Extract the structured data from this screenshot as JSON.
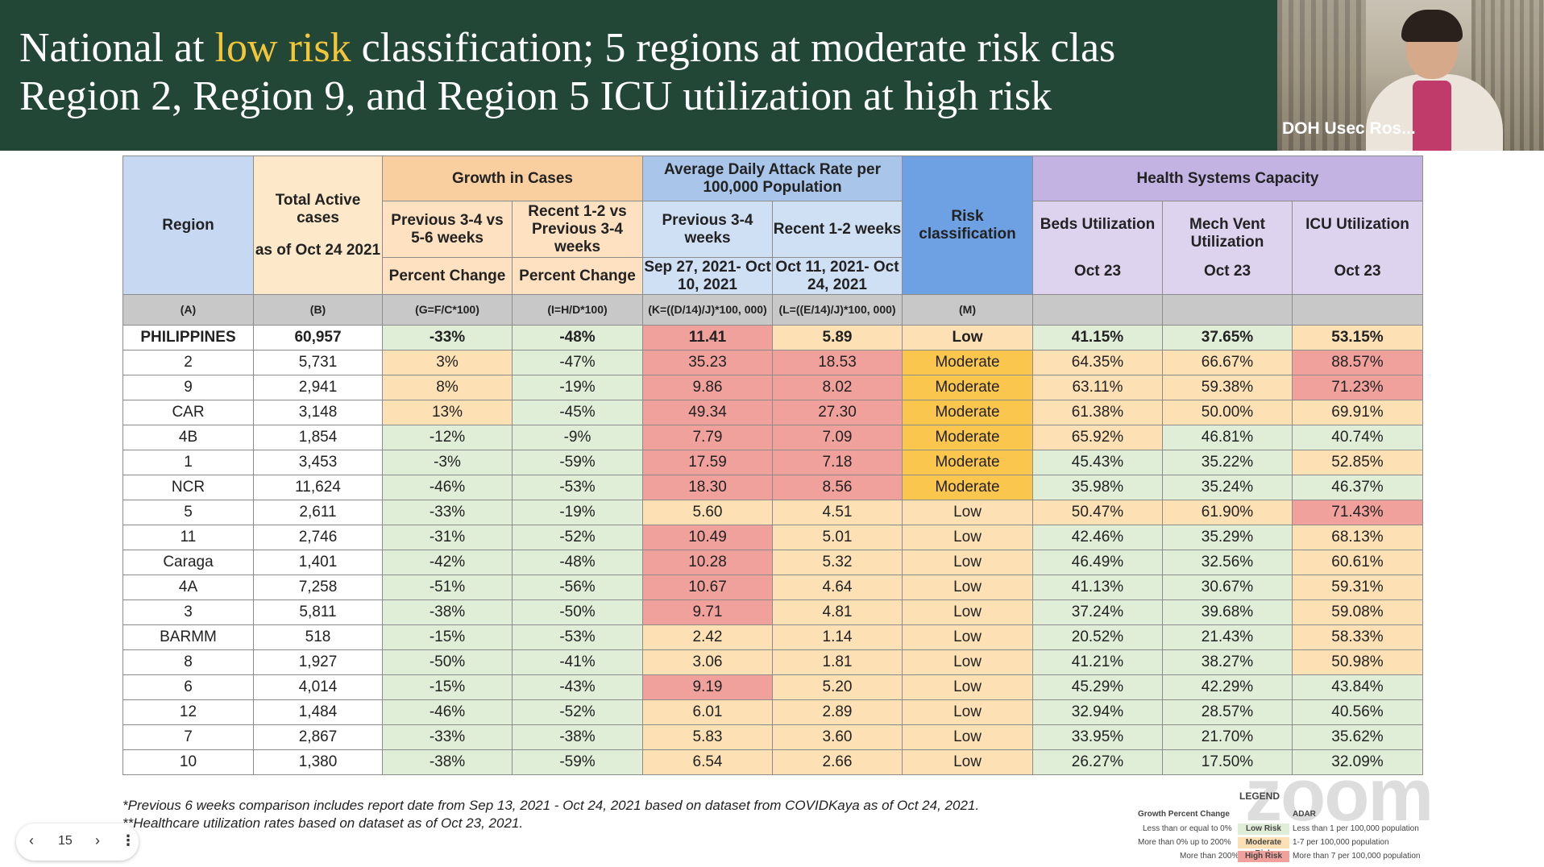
{
  "banner": {
    "title_pre": "National at ",
    "title_highlight": "low risk",
    "title_post": " classification; 5 regions at moderate risk clas",
    "title_line2": "Region 2, Region 9, and Region 5 ICU utilization at high risk"
  },
  "video": {
    "participant_label": "DOH Usec Ros..."
  },
  "table": {
    "headers": {
      "region": "Region",
      "total_active_1": "Total Active cases",
      "total_active_2": "as of Oct 24 2021",
      "growth": "Growth in Cases",
      "growth_prev": "Previous 3-4 vs 5-6 weeks",
      "growth_recent": "Recent 1-2 vs Previous 3-4 weeks",
      "percent_change": "Percent Change",
      "attack": "Average Daily Attack Rate per 100,000 Population",
      "attack_prev": "Previous 3-4 weeks",
      "attack_recent": "Recent 1-2 weeks",
      "attack_prev_dates": "Sep 27, 2021- Oct 10, 2021",
      "attack_recent_dates": "Oct 11, 2021- Oct 24, 2021",
      "risk": "Risk classification",
      "hsc": "Health Systems Capacity",
      "beds": "Beds Utilization",
      "mechvent": "Mech Vent Utilization",
      "icu": "ICU Utilization",
      "oct23": "Oct 23"
    },
    "codes": [
      "(A)",
      "(B)",
      "(G=F/C*100)",
      "(I=H/D*100)",
      "(K=((D/14)/J)*100, 000)",
      "(L=((E/14)/J)*100, 000)",
      "(M)",
      "",
      "",
      ""
    ],
    "rows": [
      {
        "region": "PHILIPPINES",
        "active": "60,957",
        "g1": "-33%",
        "g2": "-48%",
        "a1": "11.41",
        "a2": "5.89",
        "risk": "Low",
        "beds": "41.15%",
        "mv": "37.65%",
        "icu": "53.15%"
      },
      {
        "region": "2",
        "active": "5,731",
        "g1": "3%",
        "g2": "-47%",
        "a1": "35.23",
        "a2": "18.53",
        "risk": "Moderate",
        "beds": "64.35%",
        "mv": "66.67%",
        "icu": "88.57%"
      },
      {
        "region": "9",
        "active": "2,941",
        "g1": "8%",
        "g2": "-19%",
        "a1": "9.86",
        "a2": "8.02",
        "risk": "Moderate",
        "beds": "63.11%",
        "mv": "59.38%",
        "icu": "71.23%"
      },
      {
        "region": "CAR",
        "active": "3,148",
        "g1": "13%",
        "g2": "-45%",
        "a1": "49.34",
        "a2": "27.30",
        "risk": "Moderate",
        "beds": "61.38%",
        "mv": "50.00%",
        "icu": "69.91%"
      },
      {
        "region": "4B",
        "active": "1,854",
        "g1": "-12%",
        "g2": "-9%",
        "a1": "7.79",
        "a2": "7.09",
        "risk": "Moderate",
        "beds": "65.92%",
        "mv": "46.81%",
        "icu": "40.74%"
      },
      {
        "region": "1",
        "active": "3,453",
        "g1": "-3%",
        "g2": "-59%",
        "a1": "17.59",
        "a2": "7.18",
        "risk": "Moderate",
        "beds": "45.43%",
        "mv": "35.22%",
        "icu": "52.85%"
      },
      {
        "region": "NCR",
        "active": "11,624",
        "g1": "-46%",
        "g2": "-53%",
        "a1": "18.30",
        "a2": "8.56",
        "risk": "Moderate",
        "beds": "35.98%",
        "mv": "35.24%",
        "icu": "46.37%"
      },
      {
        "region": "5",
        "active": "2,611",
        "g1": "-33%",
        "g2": "-19%",
        "a1": "5.60",
        "a2": "4.51",
        "risk": "Low",
        "beds": "50.47%",
        "mv": "61.90%",
        "icu": "71.43%"
      },
      {
        "region": "11",
        "active": "2,746",
        "g1": "-31%",
        "g2": "-52%",
        "a1": "10.49",
        "a2": "5.01",
        "risk": "Low",
        "beds": "42.46%",
        "mv": "35.29%",
        "icu": "68.13%"
      },
      {
        "region": "Caraga",
        "active": "1,401",
        "g1": "-42%",
        "g2": "-48%",
        "a1": "10.28",
        "a2": "5.32",
        "risk": "Low",
        "beds": "46.49%",
        "mv": "32.56%",
        "icu": "60.61%"
      },
      {
        "region": "4A",
        "active": "7,258",
        "g1": "-51%",
        "g2": "-56%",
        "a1": "10.67",
        "a2": "4.64",
        "risk": "Low",
        "beds": "41.13%",
        "mv": "30.67%",
        "icu": "59.31%"
      },
      {
        "region": "3",
        "active": "5,811",
        "g1": "-38%",
        "g2": "-50%",
        "a1": "9.71",
        "a2": "4.81",
        "risk": "Low",
        "beds": "37.24%",
        "mv": "39.68%",
        "icu": "59.08%"
      },
      {
        "region": "BARMM",
        "active": "518",
        "g1": "-15%",
        "g2": "-53%",
        "a1": "2.42",
        "a2": "1.14",
        "risk": "Low",
        "beds": "20.52%",
        "mv": "21.43%",
        "icu": "58.33%"
      },
      {
        "region": "8",
        "active": "1,927",
        "g1": "-50%",
        "g2": "-41%",
        "a1": "3.06",
        "a2": "1.81",
        "risk": "Low",
        "beds": "41.21%",
        "mv": "38.27%",
        "icu": "50.98%"
      },
      {
        "region": "6",
        "active": "4,014",
        "g1": "-15%",
        "g2": "-43%",
        "a1": "9.19",
        "a2": "5.20",
        "risk": "Low",
        "beds": "45.29%",
        "mv": "42.29%",
        "icu": "43.84%"
      },
      {
        "region": "12",
        "active": "1,484",
        "g1": "-46%",
        "g2": "-52%",
        "a1": "6.01",
        "a2": "2.89",
        "risk": "Low",
        "beds": "32.94%",
        "mv": "28.57%",
        "icu": "40.56%"
      },
      {
        "region": "7",
        "active": "2,867",
        "g1": "-33%",
        "g2": "-38%",
        "a1": "5.83",
        "a2": "3.60",
        "risk": "Low",
        "beds": "33.95%",
        "mv": "21.70%",
        "icu": "35.62%"
      },
      {
        "region": "10",
        "active": "1,380",
        "g1": "-38%",
        "g2": "-59%",
        "a1": "6.54",
        "a2": "2.66",
        "risk": "Low",
        "beds": "26.27%",
        "mv": "17.50%",
        "icu": "32.09%"
      }
    ]
  },
  "footnotes": {
    "line1": "*Previous 6 weeks comparison includes report date from Sep 13, 2021 - Oct 24, 2021 based on dataset from COVIDKaya as of Oct 24, 2021.",
    "line2": "**Healthcare utilization rates based on dataset as of Oct 23, 2021."
  },
  "legend": {
    "title": "LEGEND",
    "growth_header": "Growth Percent Change",
    "adar_header": "ADAR",
    "rows": [
      {
        "growth": "Less than or equal to 0%",
        "risk": "Low Risk",
        "adar": "Less than 1 per 100,000 population"
      },
      {
        "growth": "More than 0% up to 200%",
        "risk": "Moderate Risk",
        "adar": "1-7 per 100,000 population"
      },
      {
        "growth": "More than 200%",
        "risk": "High Risk",
        "adar": "More than 7 per 100,000 population"
      }
    ]
  },
  "watermark": "zoom",
  "pager": {
    "page": "15",
    "prev_icon": "chevron-left-icon",
    "next_icon": "chevron-right-icon",
    "more_icon": "more-vertical-icon"
  },
  "colors": {
    "banner_bg": "#234737",
    "highlight": "#f3c63a",
    "low": "#e0eed8",
    "moderate_cell": "#fde1b5",
    "high": "#f0a19c",
    "moderate_risk": "#fbc64d"
  }
}
